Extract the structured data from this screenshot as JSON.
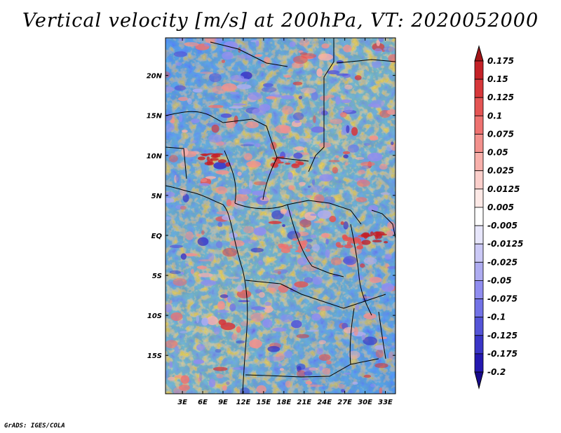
{
  "title": "Vertical velocity [m/s] at 200hPa, VT: 2020052000",
  "credit": "GrADS: IGES/COLA",
  "map": {
    "lon_labels": [
      "3E",
      "6E",
      "9E",
      "12E",
      "15E",
      "18E",
      "21E",
      "24E",
      "27E",
      "30E",
      "33E"
    ],
    "lon_values": [
      3,
      6,
      9,
      12,
      15,
      18,
      21,
      24,
      27,
      30,
      33
    ],
    "lat_labels": [
      "20N",
      "15N",
      "10N",
      "5N",
      "EQ",
      "5S",
      "10S",
      "15S"
    ],
    "lat_values": [
      20,
      15,
      10,
      5,
      0,
      -5,
      -10,
      -15
    ],
    "lon_range": [
      0.5,
      34.5
    ],
    "lat_range": [
      -19.8,
      24.7
    ]
  },
  "colorbar": {
    "labels": [
      "0.175",
      "0.15",
      "0.125",
      "0.1",
      "0.075",
      "0.05",
      "0.025",
      "0.0125",
      "0.005",
      "-0.005",
      "-0.0125",
      "-0.025",
      "-0.05",
      "-0.075",
      "-0.1",
      "-0.125",
      "-0.175",
      "-0.2"
    ],
    "colors": [
      "#a31518",
      "#c42127",
      "#d7373a",
      "#e45453",
      "#ee7270",
      "#f3918d",
      "#f8b0ab",
      "#fbcfcb",
      "#fde9e6",
      "#ffffff",
      "#e7e6fb",
      "#cbc9f6",
      "#aeacf1",
      "#908df0",
      "#7272e6",
      "#5454d8",
      "#3a35c7",
      "#2418b0",
      "#180a8c"
    ]
  }
}
